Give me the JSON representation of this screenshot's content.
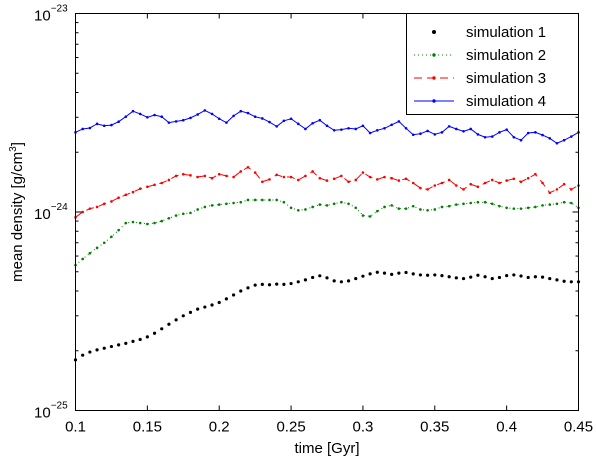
{
  "chart_data": {
    "type": "line",
    "title": "",
    "xlabel": "time [Gyr]",
    "ylabel_parts": {
      "main": "mean density [g/cm",
      "sup": "3",
      "end": "]"
    },
    "xlim": [
      0.1,
      0.45
    ],
    "ylim": [
      1e-25,
      1e-23
    ],
    "yscale": "log",
    "x_ticks": [
      {
        "value": 0.1,
        "label": "0.1"
      },
      {
        "value": 0.15,
        "label": "0.15"
      },
      {
        "value": 0.2,
        "label": "0.2"
      },
      {
        "value": 0.25,
        "label": "0.25"
      },
      {
        "value": 0.3,
        "label": "0.3"
      },
      {
        "value": 0.35,
        "label": "0.35"
      },
      {
        "value": 0.4,
        "label": "0.4"
      },
      {
        "value": 0.45,
        "label": "0.45"
      }
    ],
    "y_ticks": [
      {
        "value": 1e-25,
        "base": "10",
        "exp": "−25"
      },
      {
        "value": 1e-24,
        "base": "10",
        "exp": "−24"
      },
      {
        "value": 1e-23,
        "base": "10",
        "exp": "−23"
      }
    ],
    "legend": {
      "position": "top-right"
    },
    "grid": false,
    "series": [
      {
        "name": "simulation 1",
        "color": "#000000",
        "style": "dots",
        "x": [
          0.1,
          0.105,
          0.11,
          0.115,
          0.12,
          0.125,
          0.13,
          0.135,
          0.14,
          0.145,
          0.15,
          0.155,
          0.16,
          0.165,
          0.17,
          0.175,
          0.18,
          0.185,
          0.19,
          0.195,
          0.2,
          0.205,
          0.21,
          0.215,
          0.22,
          0.225,
          0.23,
          0.235,
          0.24,
          0.245,
          0.25,
          0.255,
          0.26,
          0.265,
          0.27,
          0.275,
          0.28,
          0.285,
          0.29,
          0.295,
          0.3,
          0.305,
          0.31,
          0.315,
          0.32,
          0.325,
          0.33,
          0.335,
          0.34,
          0.345,
          0.35,
          0.355,
          0.36,
          0.365,
          0.37,
          0.375,
          0.38,
          0.385,
          0.39,
          0.395,
          0.4,
          0.405,
          0.41,
          0.415,
          0.42,
          0.425,
          0.43,
          0.435,
          0.44,
          0.445,
          0.45
        ],
        "y": [
          1.8e-25,
          1.9e-25,
          1.97e-25,
          2.02e-25,
          2.06e-25,
          2.1e-25,
          2.14e-25,
          2.18e-25,
          2.23e-25,
          2.28e-25,
          2.35e-25,
          2.45e-25,
          2.58e-25,
          2.72e-25,
          2.86e-25,
          3e-25,
          3.12e-25,
          3.24e-25,
          3.32e-25,
          3.4e-25,
          3.5e-25,
          3.65e-25,
          3.82e-25,
          4e-25,
          4.15e-25,
          4.28e-25,
          4.32e-25,
          4.3e-25,
          4.33e-25,
          4.32e-25,
          4.36e-25,
          4.45e-25,
          4.55e-25,
          4.68e-25,
          4.77e-25,
          4.66e-25,
          4.5e-25,
          4.45e-25,
          4.5e-25,
          4.62e-25,
          4.75e-25,
          4.88e-25,
          4.97e-25,
          4.92e-25,
          4.85e-25,
          4.92e-25,
          4.96e-25,
          4.88e-25,
          4.82e-25,
          4.8e-25,
          4.82e-25,
          4.78e-25,
          4.72e-25,
          4.66e-25,
          4.62e-25,
          4.7e-25,
          4.8e-25,
          4.72e-25,
          4.62e-25,
          4.68e-25,
          4.78e-25,
          4.82e-25,
          4.76e-25,
          4.68e-25,
          4.72e-25,
          4.7e-25,
          4.62e-25,
          4.55e-25,
          4.48e-25,
          4.45e-25,
          4.45e-25
        ]
      },
      {
        "name": "simulation 2",
        "color": "#008000",
        "style": "dotted-dots",
        "x": [
          0.1,
          0.105,
          0.11,
          0.115,
          0.12,
          0.125,
          0.13,
          0.135,
          0.14,
          0.145,
          0.15,
          0.155,
          0.16,
          0.165,
          0.17,
          0.175,
          0.18,
          0.185,
          0.19,
          0.195,
          0.2,
          0.205,
          0.21,
          0.215,
          0.22,
          0.225,
          0.23,
          0.235,
          0.24,
          0.245,
          0.25,
          0.255,
          0.26,
          0.265,
          0.27,
          0.275,
          0.28,
          0.285,
          0.29,
          0.295,
          0.3,
          0.305,
          0.31,
          0.315,
          0.32,
          0.325,
          0.33,
          0.335,
          0.34,
          0.345,
          0.35,
          0.355,
          0.36,
          0.365,
          0.37,
          0.375,
          0.38,
          0.385,
          0.39,
          0.395,
          0.4,
          0.405,
          0.41,
          0.415,
          0.42,
          0.425,
          0.43,
          0.435,
          0.44,
          0.445,
          0.45
        ],
        "y": [
          5.4e-25,
          5.8e-25,
          6.2e-25,
          6.6e-25,
          7e-25,
          7.5e-25,
          8.1e-25,
          8.8e-25,
          8.9e-25,
          8.8e-25,
          8.7e-25,
          8.8e-25,
          9e-25,
          9.3e-25,
          9.6e-25,
          9.8e-25,
          9.9e-25,
          1.03e-24,
          1.06e-24,
          1.08e-24,
          1.09e-24,
          1.1e-24,
          1.11e-24,
          1.12e-24,
          1.15e-24,
          1.15e-24,
          1.15e-24,
          1.15e-24,
          1.15e-24,
          1.12e-24,
          1.05e-24,
          1.02e-24,
          1.03e-24,
          1.06e-24,
          1.09e-24,
          1.08e-24,
          1.1e-24,
          1.12e-24,
          1.1e-24,
          1.05e-24,
          9.6e-25,
          9.5e-25,
          1.01e-24,
          1.06e-24,
          1.08e-24,
          1.04e-24,
          1.04e-24,
          1.07e-24,
          1.03e-24,
          1.02e-24,
          1.03e-24,
          1.06e-24,
          1.07e-24,
          1.09e-24,
          1.1e-24,
          1.11e-24,
          1.12e-24,
          1.12e-24,
          1.1e-24,
          1.07e-24,
          1.05e-24,
          1.04e-24,
          1.04e-24,
          1.05e-24,
          1.06e-24,
          1.08e-24,
          1.09e-24,
          1.1e-24,
          1.12e-24,
          1.11e-24,
          1.05e-24
        ]
      },
      {
        "name": "simulation 3",
        "color": "#ff0000",
        "style": "dashed-dots",
        "x": [
          0.1,
          0.105,
          0.11,
          0.115,
          0.12,
          0.125,
          0.13,
          0.135,
          0.14,
          0.145,
          0.15,
          0.155,
          0.16,
          0.165,
          0.17,
          0.175,
          0.18,
          0.185,
          0.19,
          0.195,
          0.2,
          0.205,
          0.21,
          0.215,
          0.22,
          0.225,
          0.23,
          0.235,
          0.24,
          0.245,
          0.25,
          0.255,
          0.26,
          0.265,
          0.27,
          0.275,
          0.28,
          0.285,
          0.29,
          0.295,
          0.3,
          0.305,
          0.31,
          0.315,
          0.32,
          0.325,
          0.33,
          0.335,
          0.34,
          0.345,
          0.35,
          0.355,
          0.36,
          0.365,
          0.37,
          0.375,
          0.38,
          0.385,
          0.39,
          0.395,
          0.4,
          0.405,
          0.41,
          0.415,
          0.42,
          0.425,
          0.43,
          0.435,
          0.44,
          0.445,
          0.45
        ],
        "y": [
          9.4e-25,
          1e-24,
          1.04e-24,
          1.06e-24,
          1.1e-24,
          1.13e-24,
          1.18e-24,
          1.22e-24,
          1.26e-24,
          1.31e-24,
          1.34e-24,
          1.37e-24,
          1.4e-24,
          1.45e-24,
          1.52e-24,
          1.55e-24,
          1.53e-24,
          1.5e-24,
          1.52e-24,
          1.48e-24,
          1.55e-24,
          1.52e-24,
          1.5e-24,
          1.6e-24,
          1.68e-24,
          1.58e-24,
          1.42e-24,
          1.46e-24,
          1.54e-24,
          1.5e-24,
          1.5e-24,
          1.45e-24,
          1.52e-24,
          1.6e-24,
          1.48e-24,
          1.44e-24,
          1.47e-24,
          1.52e-24,
          1.42e-24,
          1.45e-24,
          1.58e-24,
          1.5e-24,
          1.46e-24,
          1.5e-24,
          1.48e-24,
          1.44e-24,
          1.47e-24,
          1.4e-24,
          1.32e-24,
          1.3e-24,
          1.36e-24,
          1.4e-24,
          1.45e-24,
          1.36e-24,
          1.3e-24,
          1.38e-24,
          1.34e-24,
          1.4e-24,
          1.45e-24,
          1.4e-24,
          1.44e-24,
          1.47e-24,
          1.42e-24,
          1.48e-24,
          1.55e-24,
          1.4e-24,
          1.25e-24,
          1.3e-24,
          1.38e-24,
          1.3e-24,
          1.36e-24
        ]
      },
      {
        "name": "simulation 4",
        "color": "#0000ff",
        "style": "solid-dots",
        "x": [
          0.1,
          0.105,
          0.11,
          0.115,
          0.12,
          0.125,
          0.13,
          0.135,
          0.14,
          0.145,
          0.15,
          0.155,
          0.16,
          0.165,
          0.17,
          0.175,
          0.18,
          0.185,
          0.19,
          0.195,
          0.2,
          0.205,
          0.21,
          0.215,
          0.22,
          0.225,
          0.23,
          0.235,
          0.24,
          0.245,
          0.25,
          0.255,
          0.26,
          0.265,
          0.27,
          0.275,
          0.28,
          0.285,
          0.29,
          0.295,
          0.3,
          0.305,
          0.31,
          0.315,
          0.32,
          0.325,
          0.33,
          0.335,
          0.34,
          0.345,
          0.35,
          0.355,
          0.36,
          0.365,
          0.37,
          0.375,
          0.38,
          0.385,
          0.39,
          0.395,
          0.4,
          0.405,
          0.41,
          0.415,
          0.42,
          0.425,
          0.43,
          0.435,
          0.44,
          0.445,
          0.45
        ],
        "y": [
          2.52e-24,
          2.62e-24,
          2.65e-24,
          2.78e-24,
          2.72e-24,
          2.74e-24,
          2.85e-24,
          3.02e-24,
          3.22e-24,
          3.12e-24,
          3e-24,
          3.08e-24,
          3.02e-24,
          2.82e-24,
          2.86e-24,
          2.9e-24,
          2.98e-24,
          3.1e-24,
          3.25e-24,
          3.12e-24,
          2.95e-24,
          2.82e-24,
          3.05e-24,
          3.22e-24,
          3.15e-24,
          3.02e-24,
          2.96e-24,
          2.84e-24,
          2.7e-24,
          2.88e-24,
          2.95e-24,
          2.78e-24,
          2.62e-24,
          2.8e-24,
          2.9e-24,
          2.72e-24,
          2.58e-24,
          2.6e-24,
          2.64e-24,
          2.62e-24,
          2.72e-24,
          2.5e-24,
          2.58e-24,
          2.64e-24,
          2.75e-24,
          2.86e-24,
          2.64e-24,
          2.45e-24,
          2.48e-24,
          2.56e-24,
          2.46e-24,
          2.52e-24,
          2.7e-24,
          2.62e-24,
          2.55e-24,
          2.62e-24,
          2.46e-24,
          2.38e-24,
          2.4e-24,
          2.52e-24,
          2.6e-24,
          2.38e-24,
          2.3e-24,
          2.5e-24,
          2.52e-24,
          2.44e-24,
          2.35e-24,
          2.22e-24,
          2.3e-24,
          2.4e-24,
          2.52e-24
        ]
      }
    ]
  }
}
